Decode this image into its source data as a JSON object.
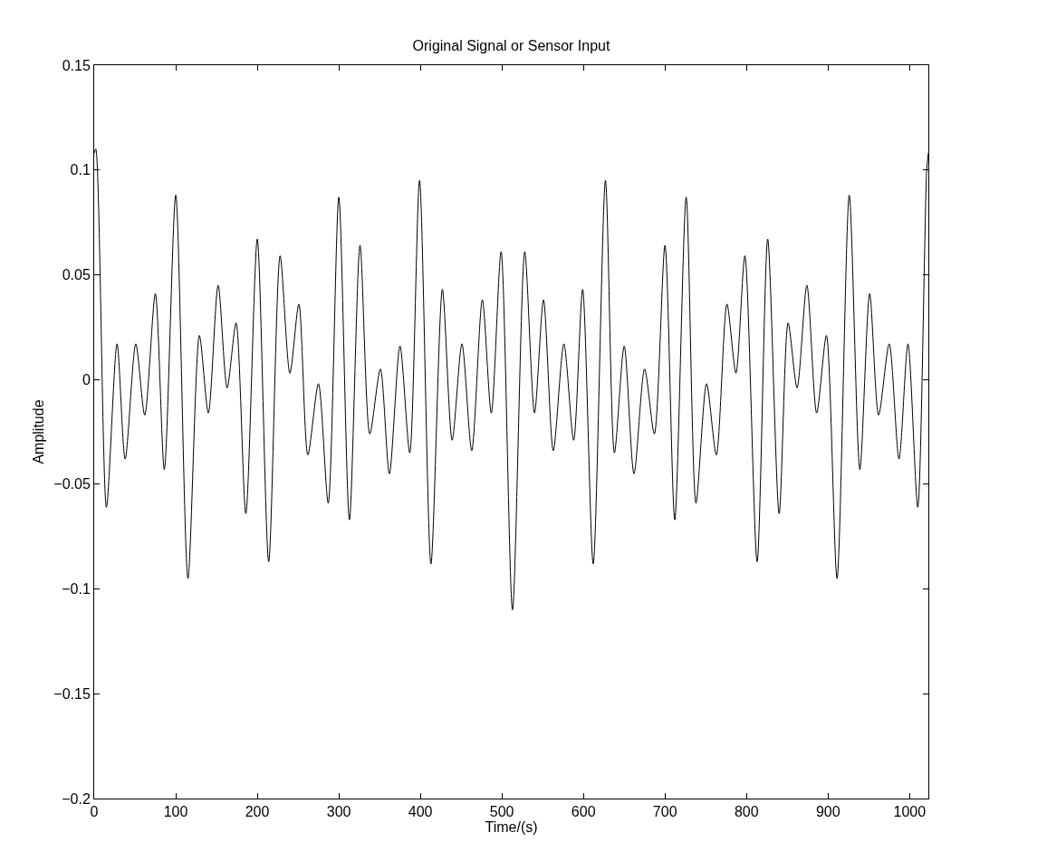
{
  "chart_data": {
    "type": "line",
    "title": "Original Signal or Sensor Input",
    "xlabel": "Time/(s)",
    "ylabel": "Amplitude",
    "xlim": [
      0,
      1023
    ],
    "ylim": [
      -0.2,
      0.15
    ],
    "xticks": [
      0,
      100,
      200,
      300,
      400,
      500,
      600,
      700,
      800,
      900,
      1000
    ],
    "yticks": [
      {
        "value": -0.2,
        "label": "−0.2"
      },
      {
        "value": -0.15,
        "label": "−0.15"
      },
      {
        "value": -0.1,
        "label": "−0.1"
      },
      {
        "value": -0.05,
        "label": "−0.05"
      },
      0,
      0.05,
      0.1,
      0.15
    ],
    "grid": false,
    "legend": false,
    "marker": "none",
    "line_style": "solid",
    "series": [
      {
        "color": "#000000",
        "x": [
          0,
          2,
          15,
          28,
          38,
          51,
          62,
          75,
          86,
          100,
          115,
          129,
          140,
          152,
          163,
          174,
          186,
          200,
          214,
          228,
          240,
          251,
          262,
          275,
          287,
          300,
          313,
          326,
          338,
          351,
          362,
          375,
          387,
          399,
          413,
          427,
          439,
          451,
          463,
          476,
          487,
          499,
          513,
          528,
          540,
          551,
          563,
          576,
          588,
          599,
          612,
          627,
          638,
          650,
          662,
          675,
          687,
          700,
          712,
          726,
          738,
          751,
          763,
          776,
          787,
          798,
          813,
          826,
          840,
          851,
          862,
          874,
          886,
          898,
          911,
          926,
          939,
          951,
          962,
          975,
          987,
          998,
          1010,
          1021,
          1023
        ],
        "values": [
          0.108,
          0.11,
          -0.061,
          0.017,
          -0.038,
          0.017,
          -0.017,
          0.041,
          -0.043,
          0.088,
          -0.095,
          0.021,
          -0.016,
          0.045,
          -0.004,
          0.027,
          -0.064,
          0.067,
          -0.087,
          0.059,
          0.003,
          0.036,
          -0.036,
          -0.002,
          -0.059,
          0.087,
          -0.067,
          0.064,
          -0.026,
          0.005,
          -0.045,
          0.016,
          -0.035,
          0.095,
          -0.088,
          0.043,
          -0.029,
          0.017,
          -0.034,
          0.038,
          -0.016,
          0.061,
          -0.11,
          0.061,
          -0.016,
          0.038,
          -0.034,
          0.017,
          -0.029,
          0.043,
          -0.088,
          0.095,
          -0.035,
          0.016,
          -0.045,
          0.005,
          -0.026,
          0.064,
          -0.067,
          0.087,
          -0.059,
          -0.002,
          -0.036,
          0.036,
          0.003,
          0.059,
          -0.087,
          0.067,
          -0.064,
          0.027,
          -0.004,
          0.045,
          -0.016,
          0.021,
          -0.095,
          0.088,
          -0.043,
          0.041,
          -0.017,
          0.017,
          -0.038,
          0.017,
          -0.061,
          0.1,
          0.108
        ]
      }
    ]
  }
}
